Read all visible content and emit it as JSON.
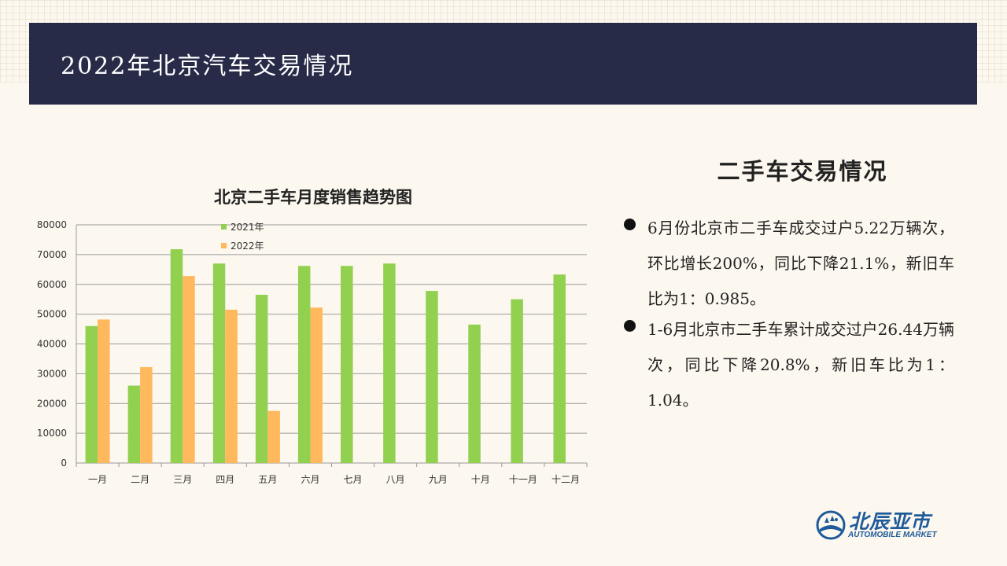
{
  "header": {
    "title": "2022年北京汽车交易情况"
  },
  "right_panel": {
    "heading": "二手车交易情况",
    "bullets": [
      "6月份北京市二手车成交过户5.22万辆次，环比增长200%，同比下降21.1%，新旧车比为1：0.985。",
      "1-6月北京市二手车累计成交过户26.44万辆次，同比下降20.8%，新旧车比为1：1.04。"
    ]
  },
  "logo": {
    "name": "北辰亚市",
    "subtitle": "AUTOMOBILE MARKET"
  },
  "colors": {
    "series_2021": "#92d050",
    "series_2022": "#ffb95c",
    "header_bg": "#272b48",
    "logo": "#1f5b9a"
  },
  "chart_data": {
    "type": "bar",
    "title": "北京二手车月度销售趋势图",
    "categories": [
      "一月",
      "二月",
      "三月",
      "四月",
      "五月",
      "六月",
      "七月",
      "八月",
      "九月",
      "十月",
      "十一月",
      "十二月"
    ],
    "series": [
      {
        "name": "2021年",
        "values": [
          46000,
          26000,
          71800,
          67000,
          56500,
          66200,
          66200,
          67000,
          57800,
          46500,
          55000,
          63300
        ]
      },
      {
        "name": "2022年",
        "values": [
          48200,
          32200,
          62800,
          51500,
          17500,
          52200,
          null,
          null,
          null,
          null,
          null,
          null
        ]
      }
    ],
    "ylim": [
      0,
      80000
    ],
    "yticks": [
      0,
      10000,
      20000,
      30000,
      40000,
      50000,
      60000,
      70000,
      80000
    ],
    "grid": true,
    "legend": "top"
  }
}
